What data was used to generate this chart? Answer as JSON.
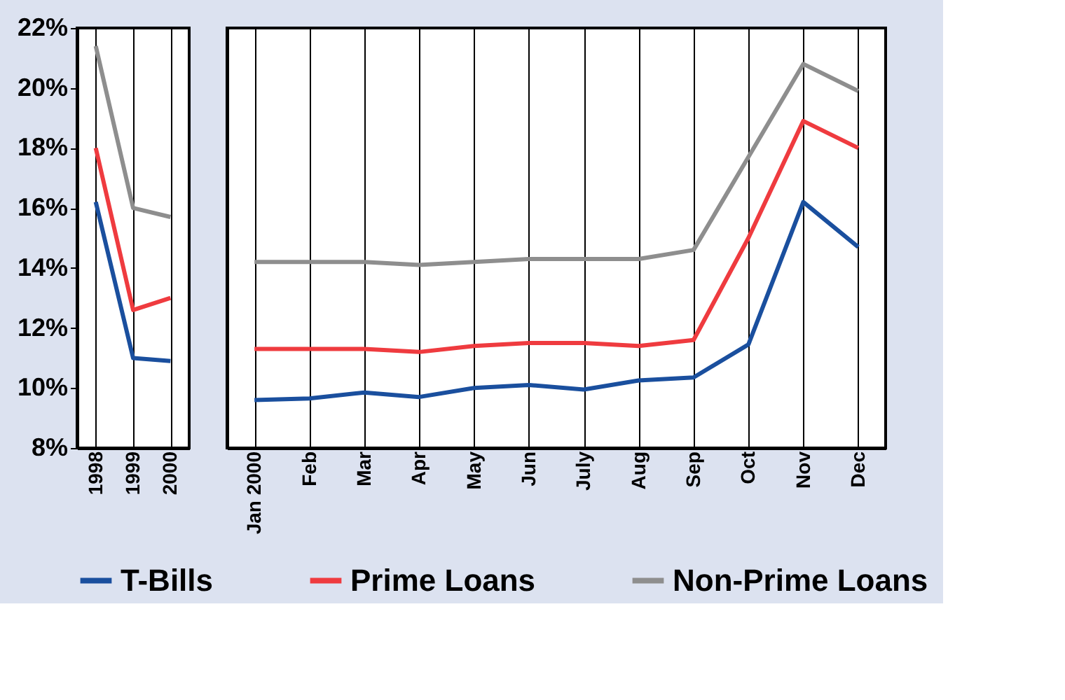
{
  "chart_data": [
    {
      "type": "line",
      "categories": [
        "1998",
        "1999",
        "2000"
      ],
      "ylim": [
        8,
        22
      ],
      "yticks": [
        {
          "value": 8,
          "label": "8%"
        },
        {
          "value": 10,
          "label": "10%"
        },
        {
          "value": 12,
          "label": "12%"
        },
        {
          "value": 14,
          "label": "14%"
        },
        {
          "value": 16,
          "label": "16%"
        },
        {
          "value": 18,
          "label": "18%"
        },
        {
          "value": 20,
          "label": "20%"
        },
        {
          "value": 22,
          "label": "22%"
        }
      ],
      "grid": "x",
      "legend": "bottom",
      "marker": "none",
      "line_style": "solid",
      "series": [
        {
          "name": "T-Bills",
          "color": "#1a4f9e",
          "values": [
            16.2,
            11.0,
            10.9
          ]
        },
        {
          "name": "Prime Loans",
          "color": "#ef3b3f",
          "values": [
            18.0,
            12.6,
            13.0
          ]
        },
        {
          "name": "Non-Prime Loans",
          "color": "#8e8e8e",
          "values": [
            21.4,
            16.0,
            15.7
          ]
        }
      ]
    },
    {
      "type": "line",
      "categories": [
        "Jan 2000",
        "Feb",
        "Mar",
        "Apr",
        "May",
        "Jun",
        "July",
        "Aug",
        "Sep",
        "Oct",
        "Nov",
        "Dec"
      ],
      "ylim": [
        8,
        22
      ],
      "tick_labels": "x",
      "grid": "x",
      "legend": "bottom",
      "marker": "none",
      "line_style": "solid",
      "series": [
        {
          "name": "T-Bills",
          "color": "#1a4f9e",
          "values": [
            9.6,
            9.65,
            9.85,
            9.7,
            10.0,
            10.1,
            9.95,
            10.25,
            10.35,
            11.45,
            16.2,
            14.7
          ]
        },
        {
          "name": "Prime Loans",
          "color": "#ef3b3f",
          "values": [
            11.3,
            11.3,
            11.3,
            11.2,
            11.4,
            11.5,
            11.5,
            11.4,
            11.6,
            15.0,
            18.9,
            18.0
          ]
        },
        {
          "name": "Non-Prime Loans",
          "color": "#8e8e8e",
          "values": [
            14.2,
            14.2,
            14.2,
            14.1,
            14.2,
            14.3,
            14.3,
            14.3,
            14.6,
            17.7,
            20.8,
            19.9
          ]
        }
      ]
    }
  ]
}
